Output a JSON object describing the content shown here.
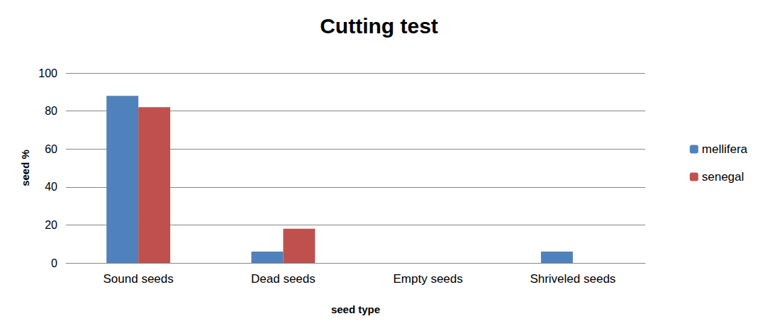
{
  "chart_data": {
    "type": "bar",
    "title": "Cutting test",
    "x_label": "seed type",
    "y_label": "seed %",
    "categories": [
      "Sound seeds",
      "Dead seeds",
      "Empty seeds",
      "Shriveled seeds"
    ],
    "series": [
      {
        "name": "mellifera",
        "color": "#4f81bd",
        "values": [
          88,
          6,
          0,
          6
        ]
      },
      {
        "name": "senegal",
        "color": "#c0504d",
        "values": [
          82,
          18,
          0,
          0
        ]
      }
    ],
    "ylim": [
      0,
      100
    ],
    "yticks": [
      0,
      20,
      40,
      60,
      80,
      100
    ],
    "grid": true,
    "legend": "right"
  }
}
